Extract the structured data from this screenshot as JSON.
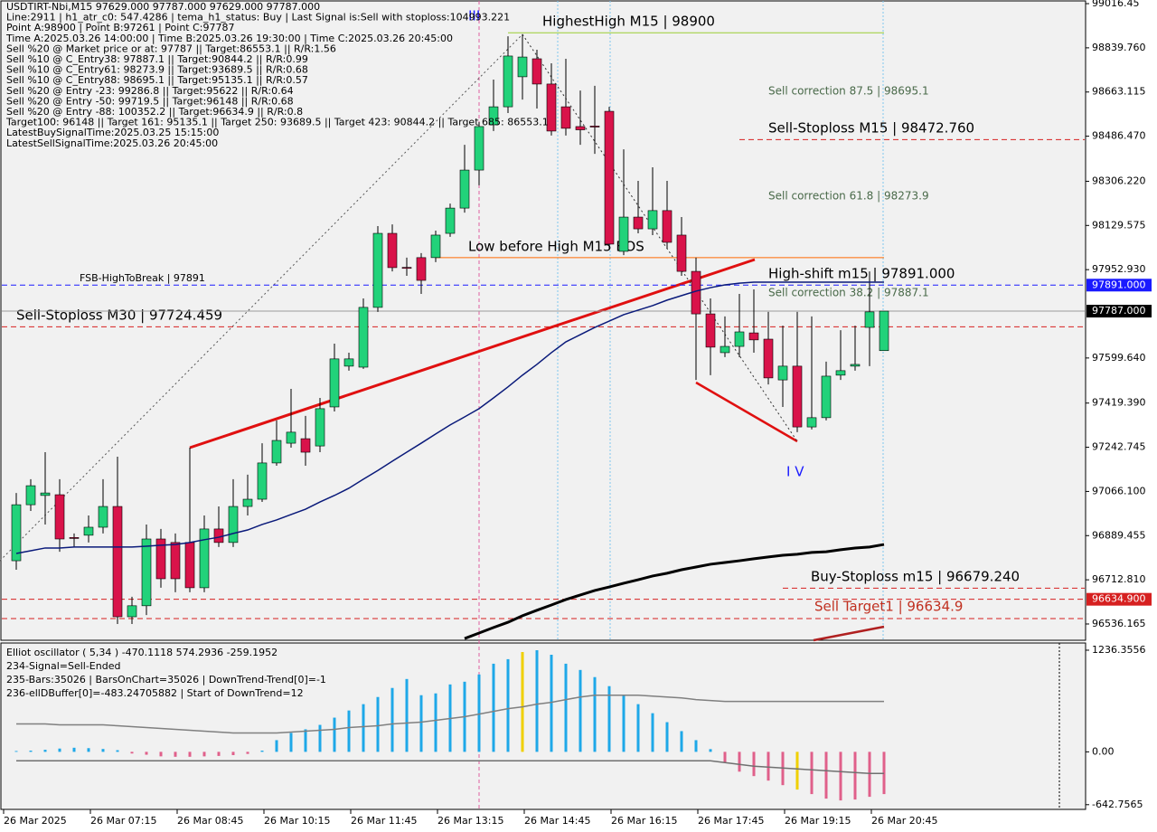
{
  "chart_data": [
    {
      "type": "candlestick",
      "header_lines": [
        "USDTIRT-Nbi,M15  97629.000 97787.000 97629.000 97787.000",
        "Line:2911 | h1_atr_c0: 547.4286 | tema_h1_status: Buy | Last Signal is:Sell with stoploss:104993.221",
        "Point A:98900 | Point B:97261 | Point C:97787",
        "Time A:2025.03.26 14:00:00 | Time B:2025.03.26 19:30:00 | Time C:2025.03.26 20:45:00",
        "Sell %20 @ Market price or at: 97787 || Target:86553.1 || R/R:1.56",
        "Sell %10 @ C_Entry38: 97887.1 || Target:90844.2 || R/R:0.99",
        "Sell %10 @ C_Entry61: 98273.9 || Target:93689.5 || R/R:0.68",
        "Sell %10 @ C_Entry88: 98695.1 || Target:95135.1 || R/R:0.57",
        "Sell %20 @ Entry -23: 99286.8 || Target:95622 || R/R:0.64",
        "Sell %20 @ Entry -50: 99719.5 || Target:96148 || R/R:0.68",
        "Sell %20 @ Entry -88: 100352.2 || Target:96634.9 || R/R:0.8",
        "Target100: 96148 || Target 161: 95135.1 || Target 250: 93689.5 || Target 423: 90844.2 || Target 685: 86553.1",
        "LatestBuySignalTime:2025.03.25 15:15:00",
        "LatestSellSignalTime:2025.03.26 20:45:00"
      ],
      "categories": [
        "26 Mar 2025",
        null,
        null,
        null,
        null,
        null,
        "26 Mar 07:15",
        null,
        null,
        null,
        null,
        null,
        "26 Mar 08:45",
        null,
        null,
        null,
        null,
        null,
        "26 Mar 10:15",
        null,
        null,
        null,
        null,
        null,
        "26 Mar 11:45",
        null,
        null,
        null,
        null,
        null,
        "26 Mar 13:15",
        null,
        null,
        null,
        null,
        null,
        "26 Mar 14:45",
        null,
        null,
        null,
        null,
        null,
        "26 Mar 16:15",
        null,
        null,
        null,
        null,
        null,
        "26 Mar 17:45",
        null,
        null,
        null,
        null,
        null,
        "26 Mar 19:15",
        null,
        null,
        null,
        null,
        null,
        "26 Mar 20:45"
      ],
      "open": [
        96789,
        97013,
        97050,
        97053,
        96882,
        96891,
        96923,
        97006,
        96565,
        96609,
        96876,
        96862,
        96862,
        96681,
        96916,
        96862,
        97006,
        97035,
        97180,
        97259,
        97277,
        97248,
        97404,
        97567,
        97563,
        97802,
        98098,
        97962,
        98001,
        98001,
        98098,
        98199,
        98351,
        98532,
        98604,
        98724,
        98796,
        98695,
        98604,
        98525,
        98527,
        98586,
        98026,
        98163,
        98116,
        98189,
        98091,
        97946,
        97776,
        97621,
        97646,
        97700,
        97675,
        97512,
        97567,
        97324,
        97361,
        97531,
        97567,
        97722,
        97629
      ],
      "high": [
        97060,
        97115,
        97223,
        97115,
        96898,
        96970,
        97115,
        97205,
        96645,
        96934,
        96916,
        96898,
        97241,
        96970,
        97006,
        97115,
        97133,
        97259,
        97350,
        97476,
        97368,
        97440,
        97657,
        97621,
        97838,
        98127,
        98134,
        98001,
        98019,
        98109,
        98217,
        98452,
        98543,
        98713,
        98886,
        98894,
        98832,
        98778,
        98796,
        98669,
        98688,
        98604,
        98434,
        98308,
        98362,
        98308,
        98163,
        98001,
        97838,
        97766,
        97856,
        97874,
        97784,
        97729,
        97784,
        97766,
        97585,
        97711,
        97729,
        97946,
        97787
      ],
      "low": [
        96753,
        96988,
        96934,
        96825,
        96844,
        96862,
        96898,
        96536,
        96536,
        96572,
        96681,
        96663,
        96663,
        96663,
        96844,
        96844,
        96970,
        97024,
        97169,
        97241,
        97169,
        97223,
        97386,
        97549,
        97556,
        97784,
        97946,
        97928,
        97856,
        97983,
        98084,
        98181,
        98290,
        98507,
        98579,
        98633,
        98597,
        98489,
        98489,
        98452,
        98416,
        98037,
        98011,
        98098,
        98091,
        98037,
        97928,
        97512,
        97531,
        97603,
        97603,
        97621,
        97494,
        97404,
        97303,
        97314,
        97350,
        97512,
        97549,
        97567,
        97629
      ],
      "close": [
        97013,
        97089,
        97060,
        96876,
        96878,
        96923,
        97006,
        96565,
        96609,
        96876,
        96717,
        96717,
        96681,
        96916,
        96862,
        97006,
        97035,
        97180,
        97270,
        97303,
        97223,
        97397,
        97596,
        97596,
        97802,
        98098,
        97961,
        97958,
        97910,
        98091,
        98199,
        98351,
        98525,
        98604,
        98807,
        98803,
        98695,
        98507,
        98518,
        98512,
        98523,
        98055,
        98163,
        98116,
        98189,
        98062,
        97946,
        97776,
        97643,
        97646,
        97704,
        97672,
        97520,
        97567,
        97324,
        97361,
        97527,
        97549,
        97574,
        97784,
        97787
      ],
      "up_color": "#22d27a",
      "down_color": "#d9134a",
      "series": [
        {
          "color": "#0a1a7a",
          "values": [
            96818,
            96829,
            96840,
            96840,
            96844,
            96844,
            96844,
            96844,
            96844,
            96847,
            96851,
            96854,
            96862,
            96873,
            96883,
            96898,
            96912,
            96934,
            96952,
            96974,
            96995,
            97024,
            97050,
            97079,
            97115,
            97150,
            97187,
            97223,
            97259,
            97296,
            97332,
            97364,
            97397,
            97440,
            97484,
            97531,
            97574,
            97621,
            97664,
            97693,
            97722,
            97747,
            97773,
            97791,
            97809,
            97831,
            97849,
            97867,
            97881,
            97892,
            97899,
            97903,
            97903,
            97903,
            97903,
            97903,
            97903,
            97903,
            97903,
            97903,
            97903
          ]
        },
        {
          "color": "#000000",
          "values": [
            null,
            null,
            null,
            null,
            null,
            null,
            null,
            null,
            null,
            null,
            null,
            null,
            null,
            null,
            null,
            null,
            null,
            null,
            null,
            null,
            null,
            null,
            null,
            null,
            null,
            null,
            null,
            null,
            null,
            null,
            null,
            96478,
            96500,
            96522,
            96543,
            96569,
            96591,
            96612,
            96634,
            96652,
            96670,
            96684,
            96699,
            96713,
            96728,
            96739,
            96753,
            96764,
            96775,
            96782,
            96789,
            96797,
            96804,
            96811,
            96815,
            96822,
            96825,
            96833,
            96840,
            96844,
            96854
          ]
        }
      ],
      "price_lines": [
        {
          "value": 98900,
          "color": "#9acd32",
          "dash": false,
          "start": 35,
          "end": 60
        },
        {
          "value": 98472.76,
          "color": "#d62020",
          "dash": true,
          "start": 51
        },
        {
          "value": 98001,
          "color": "#ff6a00",
          "dash": false,
          "start": 30,
          "end": 60
        },
        {
          "value": 97891,
          "label": "97891.000",
          "color": "#1a1aff",
          "box": "#1a1aff",
          "dash": true,
          "start": 0
        },
        {
          "value": 97787,
          "label": "97787.000",
          "color": "#9a9a9a",
          "box": "#000000",
          "dash": false,
          "start": 0
        },
        {
          "value": 97724.459,
          "color": "#d62020",
          "dash": true,
          "start": 0
        },
        {
          "value": 96679.24,
          "color": "#d62020",
          "dash": true,
          "start": 54
        },
        {
          "value": 96634.9,
          "label": "96634.900",
          "color": "#d62020",
          "box": "#d62020",
          "dash": true,
          "start": 0
        },
        {
          "value": 96558,
          "color": "#d62020",
          "dash": true,
          "start": 0
        }
      ],
      "annotations": [
        "III",
        "HighestHigh    M15 | 98900",
        "Sell correction 87.5 | 98695.1",
        "Sell-Stoploss M15 | 98472.760",
        "Sell correction 61.8 | 98273.9",
        "Low before High    M15 BOS",
        "High-shift m15 | 97891.000",
        "FSB-HighToBreak | 97891",
        "Sell correction 38.2 | 97887.1",
        "Sell-Stoploss M30 | 97724.459",
        "I V",
        "Buy-Stoploss m15 | 96679.240",
        "Sell Target1 | 96634.9"
      ],
      "ylim": [
        96471,
        99031
      ],
      "yticks": [
        99016.45,
        {
          "value": 98839.76,
          "label": "98839.760"
        },
        98663.115,
        {
          "value": 98486.47,
          "label": "98486.470"
        },
        {
          "value": 98306.22,
          "label": "98306.220"
        },
        98129.575,
        {
          "value": 97952.93,
          "label": "97952.930"
        },
        {
          "value": 97599.64,
          "label": "97599.640"
        },
        {
          "value": 97419.39,
          "label": "97419.390"
        },
        97242.745,
        {
          "value": 97066.1,
          "label": "97066.100"
        },
        96889.455,
        {
          "value": 96712.81,
          "label": "96712.810"
        },
        96536.165
      ]
    },
    {
      "type": "bar",
      "header_lines": [
        "Elliot oscillator ( 5,34 ) -470.1118 574.2936 -259.1952",
        "234-Signal=Sell-Ended",
        "235-Bars:35026 | BarsOnChart=35026 | DownTrend-Trend[0]=-1",
        "236-ellDBuffer[0]=-483.24705882 | Start of DownTrend=12"
      ],
      "values": [
        10,
        15,
        25,
        40,
        50,
        45,
        35,
        20,
        -20,
        -35,
        -55,
        -60,
        -60,
        -55,
        -50,
        -40,
        -25,
        15,
        142,
        230,
        274,
        328,
        416,
        503,
        580,
        667,
        777,
        886,
        689,
        711,
        820,
        853,
        941,
        1072,
        1127,
        1214,
        1236,
        1181,
        1072,
        996,
        909,
        799,
        689,
        580,
        470,
        361,
        252,
        142,
        33,
        -131,
        -241,
        -295,
        -350,
        -405,
        -459,
        -514,
        -569,
        -591,
        -580,
        -547,
        -514
      ],
      "color": "#1ea8e8",
      "negative_color": "#e0608a",
      "highlight_color": "#f0d000",
      "highlights": [
        35,
        54
      ],
      "series": [
        {
          "color": "#808080",
          "values": [
            339,
            339,
            339,
            328,
            328,
            328,
            328,
            317,
            306,
            295,
            284,
            274,
            263,
            252,
            241,
            230,
            230,
            230,
            230,
            241,
            252,
            263,
            274,
            295,
            306,
            317,
            339,
            350,
            361,
            383,
            405,
            427,
            459,
            492,
            525,
            547,
            580,
            602,
            635,
            667,
            689,
            689,
            689,
            689,
            678,
            667,
            656,
            635,
            624,
            613,
            613,
            613,
            613,
            613,
            613,
            613,
            613,
            613,
            613,
            613,
            613
          ]
        },
        {
          "color": "#707070",
          "values": [
            -109,
            -109,
            -109,
            -109,
            -109,
            -109,
            -109,
            -109,
            -109,
            -109,
            -109,
            -109,
            -109,
            -109,
            -109,
            -109,
            -109,
            -109,
            -109,
            -109,
            -109,
            -109,
            -109,
            -109,
            -109,
            -109,
            -109,
            -109,
            -109,
            -109,
            -109,
            -109,
            -109,
            -109,
            -109,
            -109,
            -109,
            -109,
            -109,
            -109,
            -109,
            -109,
            -109,
            -109,
            -109,
            -109,
            -109,
            -109,
            -109,
            -131,
            -153,
            -175,
            -186,
            -197,
            -208,
            -219,
            -230,
            -241,
            -252,
            -263,
            -263
          ]
        }
      ],
      "ylim": [
        -700,
        1324
      ],
      "yticks": [
        1236.3556,
        {
          "value": 0,
          "label": "0.00"
        },
        -642.7565
      ]
    }
  ]
}
